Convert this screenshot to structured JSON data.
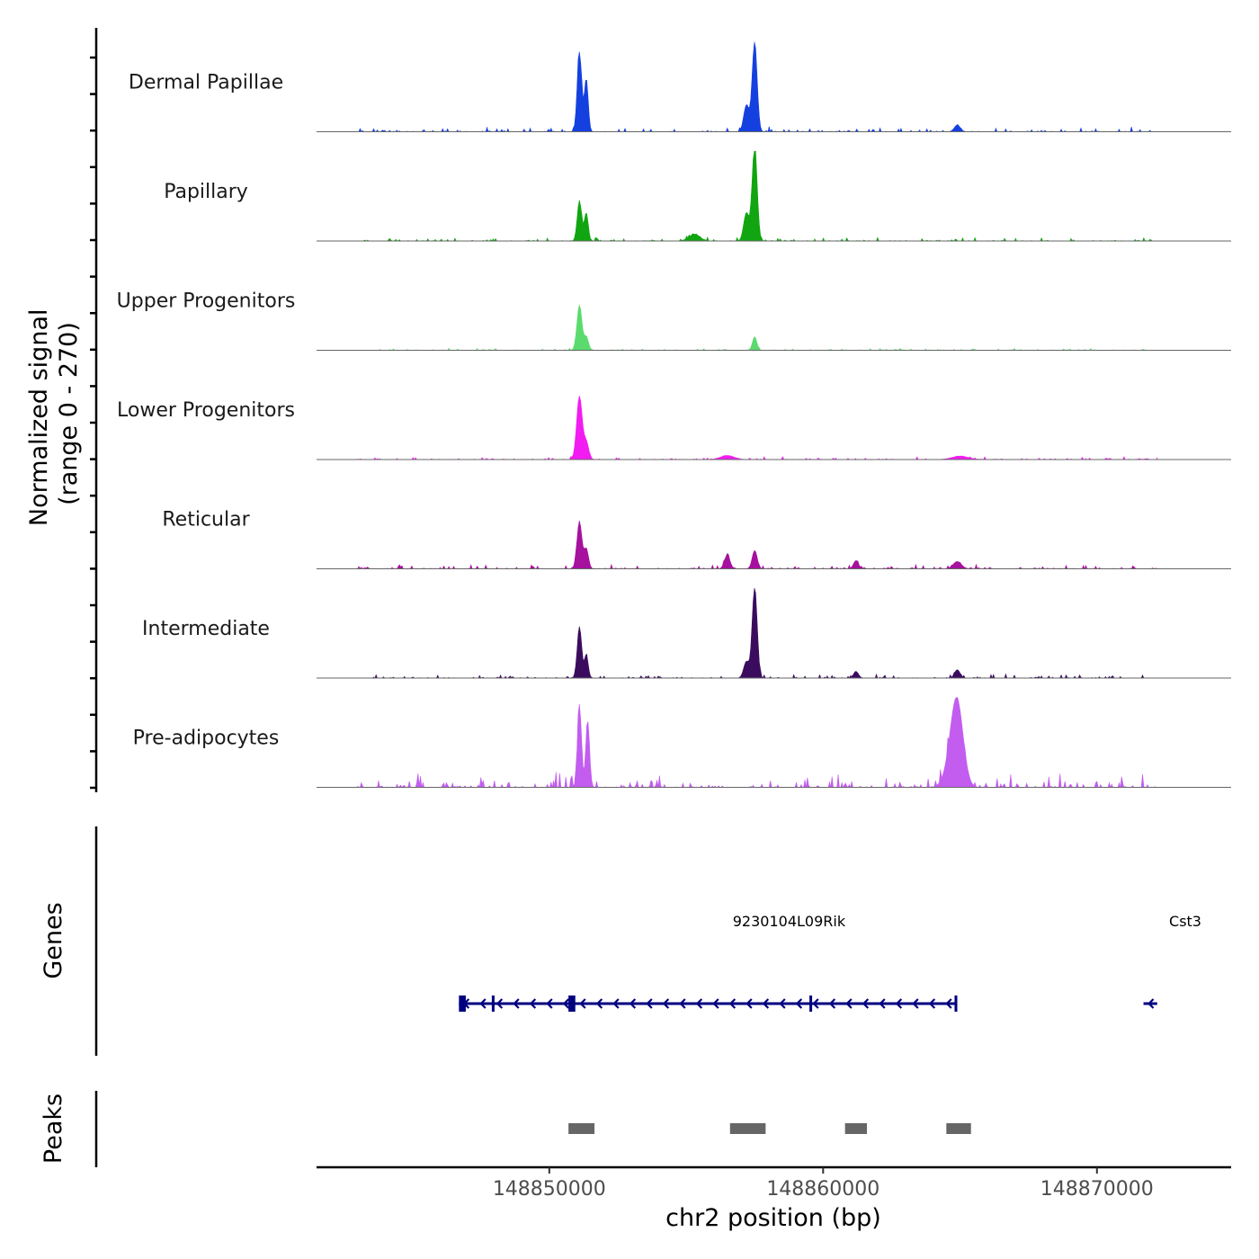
{
  "chart_data": {
    "type": "area",
    "title": "",
    "xlabel": "chr2 position (bp)",
    "ylabel": "Normalized signal\n(range 0 - 270)",
    "ylabel_lines": [
      "Normalized signal",
      "(range 0 - 270)"
    ],
    "ylim": [
      0,
      270
    ],
    "xlim": [
      148841500,
      148874900
    ],
    "xticks": [
      148850000,
      148860000,
      148870000
    ],
    "xtick_labels": [
      "148850000",
      "148860000",
      "148870000"
    ],
    "data_range": [
      148843000,
      148872200
    ],
    "series": [
      {
        "name": "Dermal Papillae",
        "color": "#1540E0",
        "peaks": [
          [
            148851100,
            240,
            80
          ],
          [
            148851350,
            160,
            70
          ],
          [
            148857500,
            270,
            90
          ],
          [
            148857200,
            80,
            100
          ],
          [
            148864900,
            20,
            110
          ]
        ],
        "noise": 10,
        "seed": 11
      },
      {
        "name": "Papillary",
        "color": "#11A511",
        "peaks": [
          [
            148851100,
            120,
            80
          ],
          [
            148851350,
            85,
            70
          ],
          [
            148857500,
            290,
            90
          ],
          [
            148857200,
            85,
            100
          ],
          [
            148855300,
            20,
            200
          ]
        ],
        "noise": 8,
        "seed": 23
      },
      {
        "name": "Upper Progenitors",
        "color": "#5BDB6E",
        "peaks": [
          [
            148851100,
            135,
            90
          ],
          [
            148851350,
            40,
            80
          ],
          [
            148857500,
            40,
            80
          ]
        ],
        "noise": 4,
        "seed": 37
      },
      {
        "name": "Lower Progenitors",
        "color": "#F21CF2",
        "peaks": [
          [
            148851100,
            190,
            100
          ],
          [
            148851350,
            50,
            90
          ],
          [
            148856500,
            12,
            250
          ],
          [
            148865000,
            10,
            300
          ]
        ],
        "noise": 6,
        "seed": 41
      },
      {
        "name": "Reticular",
        "color": "#A6119E",
        "peaks": [
          [
            148851100,
            140,
            90
          ],
          [
            148851350,
            60,
            80
          ],
          [
            148856500,
            40,
            100
          ],
          [
            148857500,
            55,
            90
          ],
          [
            148861200,
            25,
            90
          ],
          [
            148864900,
            22,
            150
          ]
        ],
        "noise": 10,
        "seed": 53
      },
      {
        "name": "Intermediate",
        "color": "#3B0C5E",
        "peaks": [
          [
            148851100,
            155,
            80
          ],
          [
            148851350,
            70,
            70
          ],
          [
            148857500,
            275,
            90
          ],
          [
            148857200,
            50,
            100
          ],
          [
            148861200,
            20,
            90
          ],
          [
            148864900,
            25,
            100
          ]
        ],
        "noise": 8,
        "seed": 67
      },
      {
        "name": "Pre-adipocytes",
        "color": "#C25DF0",
        "peaks": [
          [
            148851100,
            250,
            70
          ],
          [
            148851400,
            200,
            70
          ],
          [
            148864900,
            225,
            220
          ],
          [
            148864700,
            60,
            250
          ]
        ],
        "noise": 32,
        "seed": 79
      }
    ],
    "genes_track_label": "Genes",
    "genes": [
      {
        "name": "9230104L09Rik",
        "start": 148846700,
        "end": 148864900,
        "strand": "-",
        "exons": [
          [
            148846700,
            148846950
          ],
          [
            148847900,
            148848000
          ],
          [
            148850700,
            148850950
          ],
          [
            148859500,
            148859580
          ],
          [
            148864800,
            148864900
          ]
        ]
      },
      {
        "name": "Cst3",
        "start": 148871700,
        "end": 148872200,
        "strand": "-",
        "exons": []
      }
    ],
    "gene_color": "#000080",
    "peaks_track_label": "Peaks",
    "peak_regions": [
      [
        148850700,
        148851650
      ],
      [
        148856600,
        148857900
      ],
      [
        148860800,
        148861600
      ],
      [
        148864500,
        148865400
      ]
    ],
    "peak_color": "#666666"
  }
}
